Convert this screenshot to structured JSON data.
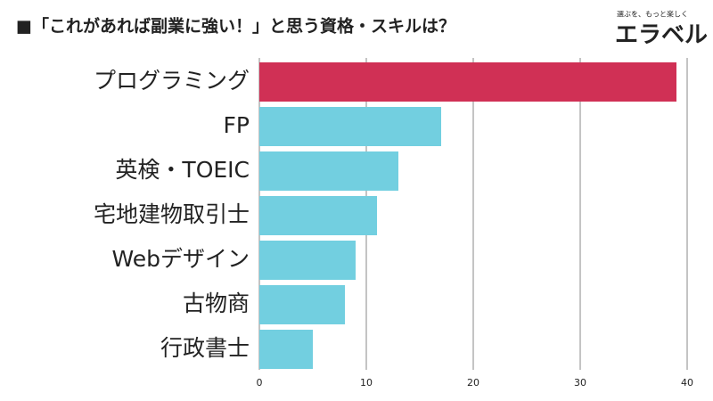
{
  "chart_data": {
    "type": "barh",
    "title": "■「これがあれば副業に強い！」と思う資格・スキルは？",
    "categories": [
      "プログラミング",
      "FP",
      "英検・TOEIC",
      "宅地建物取引士",
      "Webデザイン",
      "古物商",
      "行政書士"
    ],
    "values": [
      39,
      17,
      13,
      11,
      9,
      8,
      5
    ],
    "colors": [
      "#d03055",
      "#72cfe0",
      "#72cfe0",
      "#72cfe0",
      "#72cfe0",
      "#72cfe0",
      "#72cfe0"
    ],
    "xlim": [
      0,
      40
    ],
    "xticks": [
      0,
      10,
      20,
      30,
      40
    ],
    "grid": true
  },
  "logo": {
    "tagline": "選ぶを、もっと楽しく",
    "name": "エラベル"
  }
}
